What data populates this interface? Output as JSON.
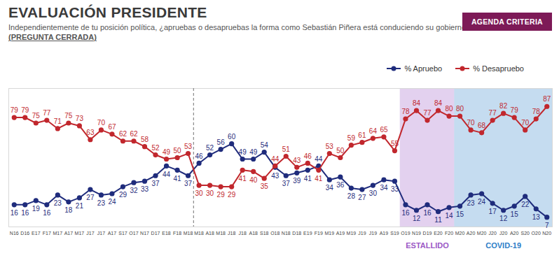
{
  "chart_data": {
    "type": "line",
    "title": "EVALUACIÓN PRESIDENTE",
    "subtitle": "Independientemente de tu posición política, ¿apruebas o desapruebas la forma como Sebastián Piñera está conduciendo su gobierno?",
    "subtitle_note": "(PREGUNTA CERRADA)",
    "badge": "AGENDA CRITERIA",
    "x": [
      "N16",
      "D16",
      "E17",
      "F17",
      "M17",
      "A17",
      "M17",
      "J17",
      "J17",
      "A17",
      "S17",
      "O17",
      "N17",
      "D17",
      "E18",
      "F18",
      "M18",
      "M18",
      "A18",
      "M18",
      "J18",
      "J18",
      "A18",
      "S18",
      "O18",
      "N18",
      "D18",
      "E19",
      "F19",
      "M19",
      "A19",
      "M19",
      "J19",
      "J19",
      "A19",
      "S19",
      "O19",
      "N19",
      "D19",
      "E20",
      "F20",
      "M20",
      "A20",
      "M20",
      "J20",
      "J20",
      "A20",
      "S20",
      "O20",
      "N20"
    ],
    "series": [
      {
        "name": "% Apruebo",
        "color": "#1f2c7c",
        "marker": "circle",
        "values": [
          16,
          16,
          19,
          16,
          23,
          18,
          21,
          27,
          23,
          24,
          29,
          32,
          33,
          37,
          44,
          41,
          37,
          46,
          52,
          56,
          60,
          49,
          49,
          54,
          43,
          37,
          39,
          41,
          44,
          34,
          36,
          28,
          27,
          30,
          34,
          33,
          16,
          12,
          16,
          11,
          14,
          15,
          23,
          24,
          17,
          12,
          15,
          22,
          13,
          7
        ]
      },
      {
        "name": "% Desapruebo",
        "color": "#c1272d",
        "marker": "circle",
        "values": [
          79,
          79,
          75,
          77,
          71,
          75,
          73,
          63,
          70,
          67,
          62,
          62,
          58,
          52,
          49,
          50,
          53,
          30,
          30,
          29,
          29,
          41,
          40,
          35,
          44,
          51,
          43,
          46,
          41,
          53,
          50,
          59,
          61,
          64,
          65,
          55,
          78,
          84,
          77,
          84,
          80,
          80,
          70,
          68,
          77,
          82,
          79,
          70,
          78,
          87
        ]
      }
    ],
    "ylim": [
      0,
      100
    ],
    "tick_labels": "x",
    "data_labels": true,
    "legend": "top-right",
    "divider": 16.5,
    "regions": [
      {
        "label": "ESTALLIDO",
        "start": 35.5,
        "end": 40.5,
        "color": "#9b59c6"
      },
      {
        "label": "COVID-19",
        "start": 40.5,
        "end": 49.5,
        "color": "#2f80c8"
      }
    ]
  }
}
